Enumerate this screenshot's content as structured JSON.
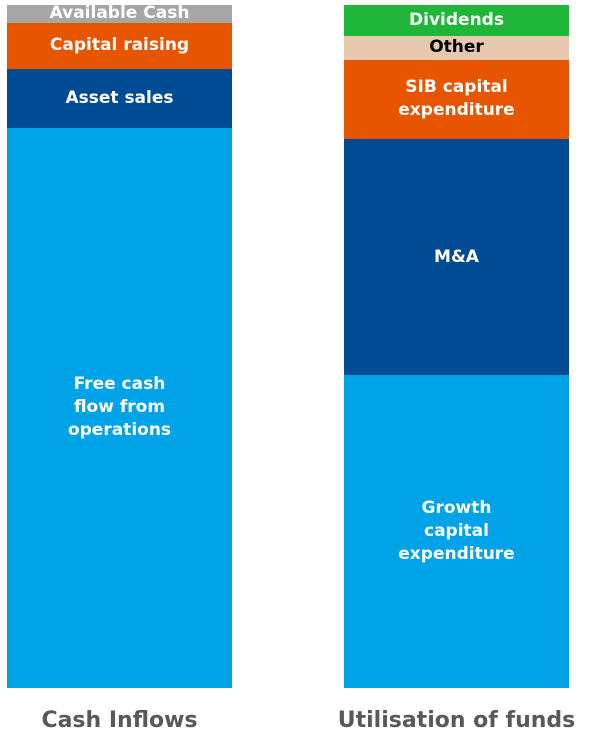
{
  "chart_data": {
    "type": "stacked_bar",
    "ylim": [
      0,
      100
    ],
    "bars": [
      {
        "name": "Cash Inflows",
        "segments": [
          {
            "name": "Free cash flow from operations",
            "color": "#00a3e8",
            "value": 82
          },
          {
            "name": "Asset sales",
            "color": "#004b93",
            "value": 8.6
          },
          {
            "name": "Capital raising",
            "color": "#e85500",
            "value": 6.8
          },
          {
            "name": "Available Cash",
            "color": "#a6a6a6",
            "value": 2.6
          }
        ]
      },
      {
        "name": "Utilisation of funds",
        "segments": [
          {
            "name": "Growth capital expenditure",
            "color": "#00a3e8",
            "value": 45.8
          },
          {
            "name": "M&A",
            "color": "#004b93",
            "value": 34.6
          },
          {
            "name": "SIB capital expenditure",
            "color": "#e85500",
            "value": 11.6
          },
          {
            "name": "Other",
            "color": "#e8c8ae",
            "value": 3.5
          },
          {
            "name": "Dividends",
            "color": "#20b63a",
            "value": 4.5
          }
        ]
      }
    ]
  }
}
